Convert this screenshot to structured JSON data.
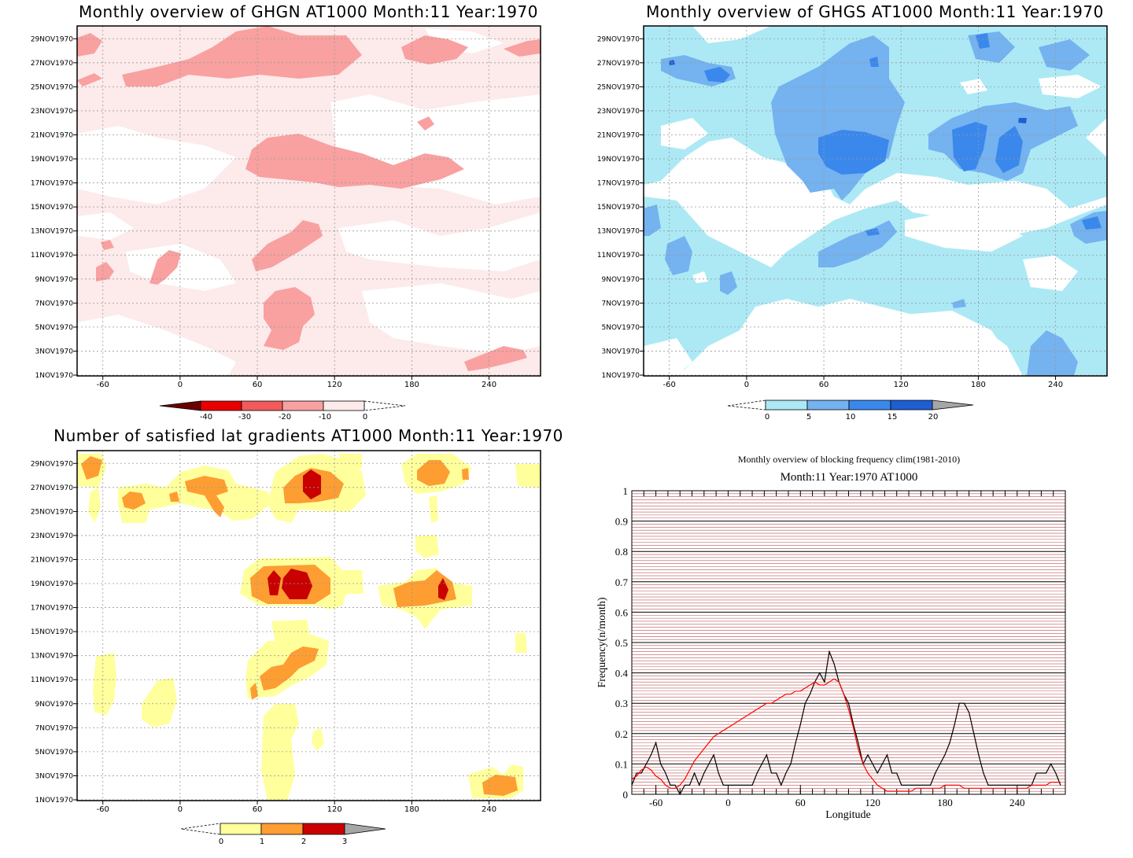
{
  "colors": {
    "ghgn": [
      "#fdeaea",
      "#f9a0a0",
      "#f35a5a",
      "#e80000",
      "#6b0000"
    ],
    "ghgs": [
      "#ace9f5",
      "#74b2f0",
      "#3a88ec",
      "#1d5fd3",
      "#a6a6a6"
    ],
    "grad": [
      "#ffff9c",
      "#fd9d32",
      "#c80000",
      "#a6a6a6"
    ],
    "freq_obs": "#000000",
    "freq_clim": "#ff0000",
    "freq_grid_minor": "#b85555"
  },
  "panels": [
    {
      "id": "ghgn",
      "title": "Monthly overview of GHGN AT1000 Month:11 Year:1970",
      "x_ticks": [
        "-60",
        "0",
        "60",
        "120",
        "180",
        "240"
      ],
      "y_ticks": [
        "1NOV1970",
        "3NOV1970",
        "5NOV1970",
        "7NOV1970",
        "9NOV1970",
        "11NOV1970",
        "13NOV1970",
        "15NOV1970",
        "17NOV1970",
        "19NOV1970",
        "21NOV1970",
        "23NOV1970",
        "25NOV1970",
        "27NOV1970",
        "29NOV1970"
      ],
      "colorbar_labels": [
        "-40",
        "-30",
        "-20",
        "-10",
        "0"
      ]
    },
    {
      "id": "ghgs",
      "title": "Monthly overview of GHGS AT1000 Month:11 Year:1970",
      "x_ticks": [
        "-60",
        "0",
        "60",
        "120",
        "180",
        "240"
      ],
      "y_ticks": [
        "1NOV1970",
        "3NOV1970",
        "5NOV1970",
        "7NOV1970",
        "9NOV1970",
        "11NOV1970",
        "13NOV1970",
        "15NOV1970",
        "17NOV1970",
        "19NOV1970",
        "21NOV1970",
        "23NOV1970",
        "25NOV1970",
        "27NOV1970",
        "29NOV1970"
      ],
      "colorbar_labels": [
        "0",
        "5",
        "10",
        "15",
        "20"
      ]
    },
    {
      "id": "grad",
      "title": "Number of satisfied lat gradients AT1000 Month:11 Year:1970",
      "x_ticks": [
        "-60",
        "0",
        "60",
        "120",
        "180",
        "240"
      ],
      "y_ticks": [
        "1NOV1970",
        "3NOV1970",
        "5NOV1970",
        "7NOV1970",
        "9NOV1970",
        "11NOV1970",
        "13NOV1970",
        "15NOV1970",
        "17NOV1970",
        "19NOV1970",
        "21NOV1970",
        "23NOV1970",
        "25NOV1970",
        "27NOV1970",
        "29NOV1970"
      ],
      "colorbar_labels": [
        "0",
        "1",
        "2",
        "3"
      ]
    }
  ],
  "chart_data": [
    {
      "type": "heatmap",
      "title": "Monthly overview of GHGN AT1000 Month:11 Year:1970",
      "x_range": [
        -80,
        280
      ],
      "y_range": [
        "1NOV1970",
        "30NOV1970"
      ],
      "levels": [
        -40,
        -30,
        -20,
        -10,
        0
      ],
      "regions": [
        {
          "level": -10,
          "lon": [
            60,
            80
          ],
          "day": [
            6,
            11
          ]
        },
        {
          "level": -10,
          "lon": [
            140,
            190
          ],
          "day": [
            17.5,
            20
          ]
        },
        {
          "level": -10,
          "lon": [
            60,
            100
          ],
          "day": [
            11,
            13.5
          ]
        },
        {
          "level": -10,
          "lon": [
            -40,
            120
          ],
          "day": [
            25,
            29
          ]
        },
        {
          "level": -10,
          "lon": [
            240,
            270
          ],
          "day": [
            1.5,
            3
          ]
        }
      ]
    },
    {
      "type": "heatmap",
      "title": "Monthly overview of GHGS AT1000 Month:11 Year:1970",
      "x_range": [
        -80,
        280
      ],
      "y_range": [
        "1NOV1970",
        "30NOV1970"
      ],
      "levels": [
        0,
        5,
        10,
        15,
        20
      ],
      "regions": [
        {
          "level": 15,
          "lon": [
            55,
            110
          ],
          "day": [
            17.5,
            21
          ]
        },
        {
          "level": 15,
          "lon": [
            155,
            210
          ],
          "day": [
            17.5,
            21
          ]
        },
        {
          "level": 15,
          "lon": [
            -35,
            -15
          ],
          "day": [
            25,
            26.5
          ]
        },
        {
          "level": 10,
          "lon": [
            20,
            120
          ],
          "day": [
            16,
            25
          ]
        },
        {
          "level": 10,
          "lon": [
            140,
            230
          ],
          "day": [
            16,
            23
          ]
        }
      ]
    },
    {
      "type": "heatmap",
      "title": "Number of satisfied lat gradients AT1000 Month:11 Year:1970",
      "x_range": [
        -80,
        280
      ],
      "y_range": [
        "1NOV1970",
        "30NOV1970"
      ],
      "levels": [
        0,
        1,
        2,
        3
      ],
      "regions": [
        {
          "level": 3,
          "lon": [
            65,
            105
          ],
          "day": [
            17.5,
            19.5
          ]
        },
        {
          "level": 3,
          "lon": [
            95,
            105
          ],
          "day": [
            26.5,
            28.5
          ]
        },
        {
          "level": 3,
          "lon": [
            200,
            205
          ],
          "day": [
            17.5,
            19
          ]
        },
        {
          "level": 2,
          "lon": [
            55,
            110
          ],
          "day": [
            17,
            20
          ]
        },
        {
          "level": 2,
          "lon": [
            160,
            220
          ],
          "day": [
            16.5,
            20
          ]
        },
        {
          "level": 2,
          "lon": [
            60,
            110
          ],
          "day": [
            9,
            13
          ]
        },
        {
          "level": 2,
          "lon": [
            230,
            260
          ],
          "day": [
            1,
            2.5
          ]
        },
        {
          "level": 1,
          "lon": [
            -75,
            -60
          ],
          "day": [
            8,
            13
          ]
        },
        {
          "level": 1,
          "lon": [
            60,
            90
          ],
          "day": [
            1,
            9
          ]
        }
      ]
    },
    {
      "type": "line",
      "title": "Monthly overview of blocking frequency clim(1981-2010)",
      "subtitle": "Month:11 Year:1970  AT1000",
      "xlabel": "Longitude",
      "ylabel": "Frequency(n/month)",
      "x_ticks": [
        "-60",
        "0",
        "60",
        "120",
        "180",
        "240"
      ],
      "y_ticks": [
        "0",
        "0.1",
        "0.2",
        "0.3",
        "0.4",
        "0.5",
        "0.6",
        "0.7",
        "0.8",
        "0.9",
        "1"
      ],
      "xlim": [
        -80,
        280
      ],
      "ylim": [
        0,
        1
      ],
      "series": [
        {
          "color": "#000000",
          "x": [
            -80,
            -76,
            -72,
            -68,
            -64,
            -60,
            -56,
            -52,
            -48,
            -44,
            -40,
            -36,
            -32,
            -28,
            -24,
            -20,
            -16,
            -12,
            -8,
            -4,
            0,
            4,
            8,
            12,
            16,
            20,
            24,
            28,
            32,
            36,
            40,
            44,
            48,
            52,
            56,
            60,
            64,
            68,
            72,
            76,
            80,
            84,
            88,
            92,
            96,
            100,
            104,
            108,
            112,
            116,
            120,
            124,
            128,
            132,
            136,
            140,
            144,
            148,
            152,
            156,
            160,
            164,
            168,
            172,
            176,
            180,
            184,
            188,
            192,
            196,
            200,
            204,
            208,
            212,
            216,
            220,
            224,
            228,
            232,
            236,
            240,
            244,
            248,
            252,
            256,
            260,
            264,
            268,
            272,
            276
          ],
          "values": [
            0.03,
            0.07,
            0.07,
            0.1,
            0.13,
            0.17,
            0.1,
            0.07,
            0.03,
            0.03,
            0.0,
            0.03,
            0.03,
            0.07,
            0.03,
            0.07,
            0.1,
            0.13,
            0.07,
            0.03,
            0.03,
            0.03,
            0.03,
            0.03,
            0.03,
            0.03,
            0.07,
            0.1,
            0.13,
            0.07,
            0.07,
            0.03,
            0.07,
            0.1,
            0.17,
            0.23,
            0.3,
            0.33,
            0.37,
            0.4,
            0.37,
            0.47,
            0.43,
            0.37,
            0.33,
            0.3,
            0.23,
            0.17,
            0.1,
            0.13,
            0.1,
            0.07,
            0.1,
            0.13,
            0.07,
            0.07,
            0.03,
            0.03,
            0.03,
            0.03,
            0.03,
            0.03,
            0.03,
            0.07,
            0.1,
            0.13,
            0.17,
            0.23,
            0.3,
            0.3,
            0.27,
            0.2,
            0.13,
            0.07,
            0.03,
            0.03,
            0.03,
            0.03,
            0.03,
            0.03,
            0.03,
            0.03,
            0.03,
            0.03,
            0.07,
            0.07,
            0.07,
            0.1,
            0.07,
            0.03
          ]
        },
        {
          "color": "#ff0000",
          "x": [
            -80,
            -76,
            -72,
            -68,
            -64,
            -60,
            -56,
            -52,
            -48,
            -44,
            -40,
            -36,
            -32,
            -28,
            -24,
            -20,
            -16,
            -12,
            -8,
            -4,
            0,
            4,
            8,
            12,
            16,
            20,
            24,
            28,
            32,
            36,
            40,
            44,
            48,
            52,
            56,
            60,
            64,
            68,
            72,
            76,
            80,
            84,
            88,
            92,
            96,
            100,
            104,
            108,
            112,
            116,
            120,
            124,
            128,
            132,
            136,
            140,
            144,
            148,
            152,
            156,
            160,
            164,
            168,
            172,
            176,
            180,
            184,
            188,
            192,
            196,
            200,
            204,
            208,
            212,
            216,
            220,
            224,
            228,
            232,
            236,
            240,
            244,
            248,
            252,
            256,
            260,
            264,
            268,
            272,
            276
          ],
          "values": [
            0.05,
            0.06,
            0.08,
            0.09,
            0.08,
            0.06,
            0.05,
            0.03,
            0.02,
            0.02,
            0.03,
            0.05,
            0.08,
            0.11,
            0.13,
            0.15,
            0.17,
            0.19,
            0.2,
            0.21,
            0.22,
            0.23,
            0.24,
            0.25,
            0.26,
            0.27,
            0.28,
            0.29,
            0.3,
            0.3,
            0.31,
            0.32,
            0.33,
            0.33,
            0.34,
            0.34,
            0.35,
            0.36,
            0.37,
            0.36,
            0.36,
            0.37,
            0.38,
            0.37,
            0.33,
            0.28,
            0.22,
            0.15,
            0.1,
            0.07,
            0.05,
            0.03,
            0.02,
            0.01,
            0.01,
            0.01,
            0.01,
            0.01,
            0.01,
            0.02,
            0.02,
            0.02,
            0.02,
            0.02,
            0.02,
            0.03,
            0.03,
            0.03,
            0.03,
            0.02,
            0.02,
            0.02,
            0.02,
            0.02,
            0.02,
            0.02,
            0.02,
            0.02,
            0.02,
            0.02,
            0.02,
            0.02,
            0.02,
            0.03,
            0.03,
            0.03,
            0.03,
            0.04,
            0.04,
            0.04
          ]
        }
      ]
    }
  ]
}
